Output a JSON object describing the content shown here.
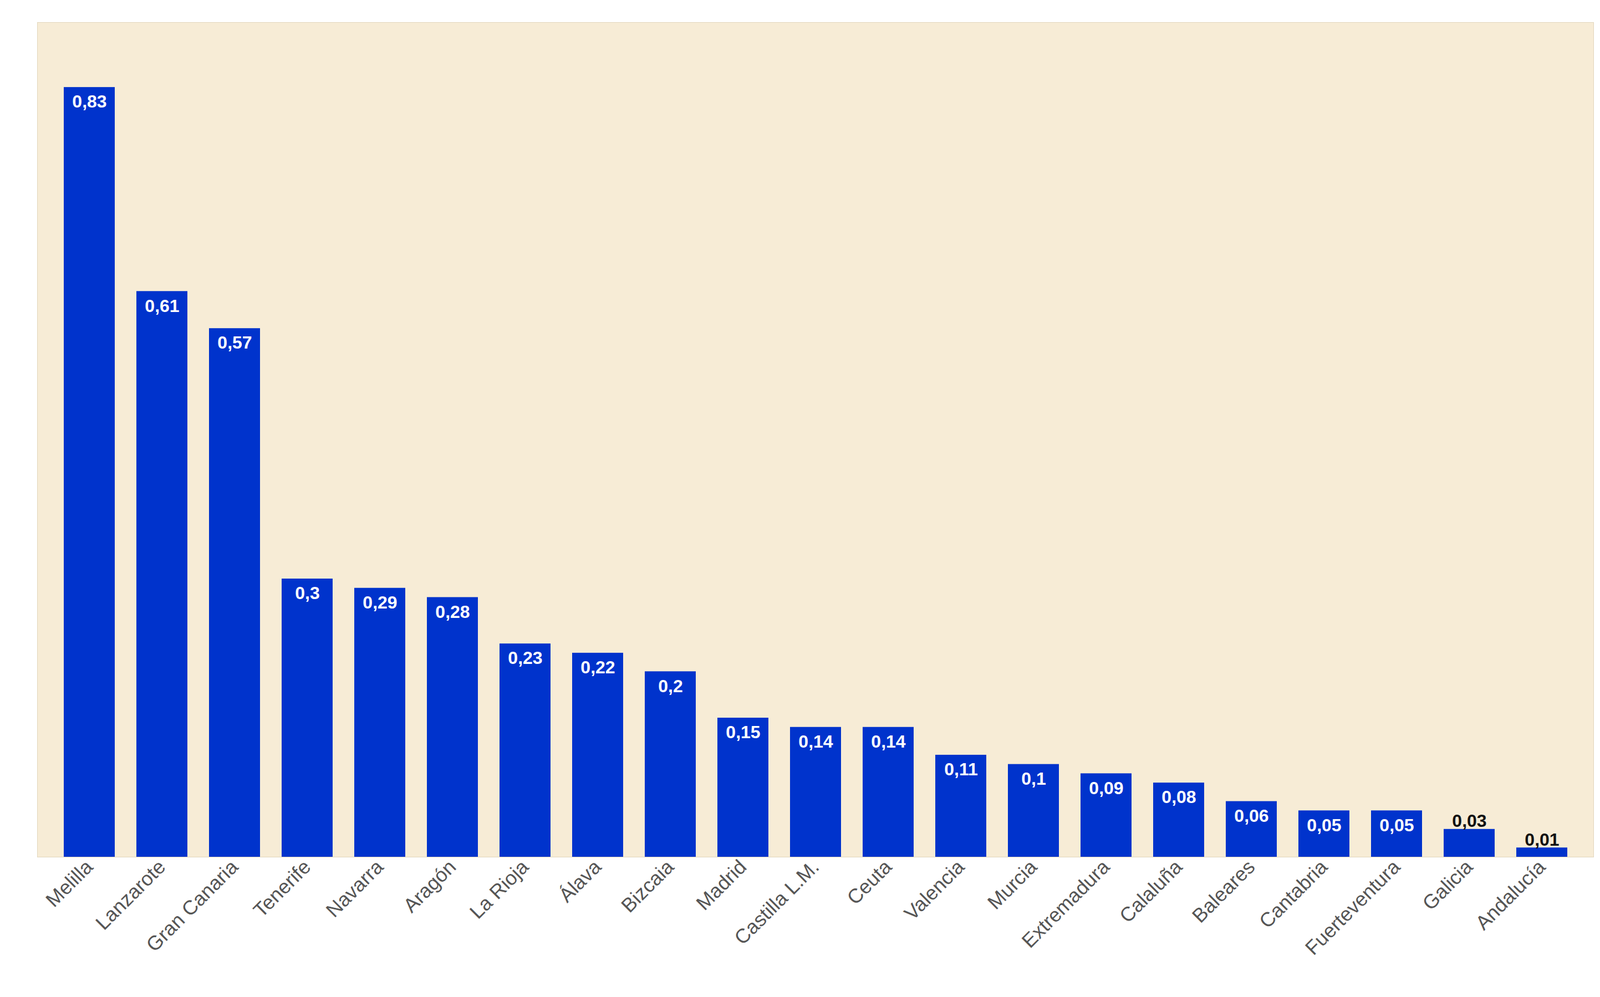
{
  "chart_data": {
    "type": "bar",
    "categories": [
      "Melilla",
      "Lanzarote",
      "Gran Canaria",
      "Tenerife",
      "Navarra",
      "Aragón",
      "La Rioja",
      "Álava",
      "Bizcaia",
      "Madrid",
      "Castilla L.M.",
      "Ceuta",
      "Valencia",
      "Murcia",
      "Extremadura",
      "Calaluña",
      "Baleares",
      "Cantabria",
      "Fuerteventura",
      "Galicia",
      "Andalucía"
    ],
    "values": [
      0.83,
      0.61,
      0.57,
      0.3,
      0.29,
      0.28,
      0.23,
      0.22,
      0.2,
      0.15,
      0.14,
      0.14,
      0.11,
      0.1,
      0.09,
      0.08,
      0.06,
      0.05,
      0.05,
      0.03,
      0.01
    ],
    "value_labels": [
      "0,83",
      "0,61",
      "0,57",
      "0,3",
      "0,29",
      "0,28",
      "0,23",
      "0,22",
      "0,2",
      "0,15",
      "0,14",
      "0,14",
      "0,11",
      "0,1",
      "0,09",
      "0,08",
      "0,06",
      "0,05",
      "0,05",
      "0,03",
      "0,01"
    ],
    "color": "#0033cc",
    "ylim": [
      0,
      0.9
    ],
    "yticks": [],
    "grid": false,
    "data_labels": true,
    "tick_labels": "x"
  }
}
